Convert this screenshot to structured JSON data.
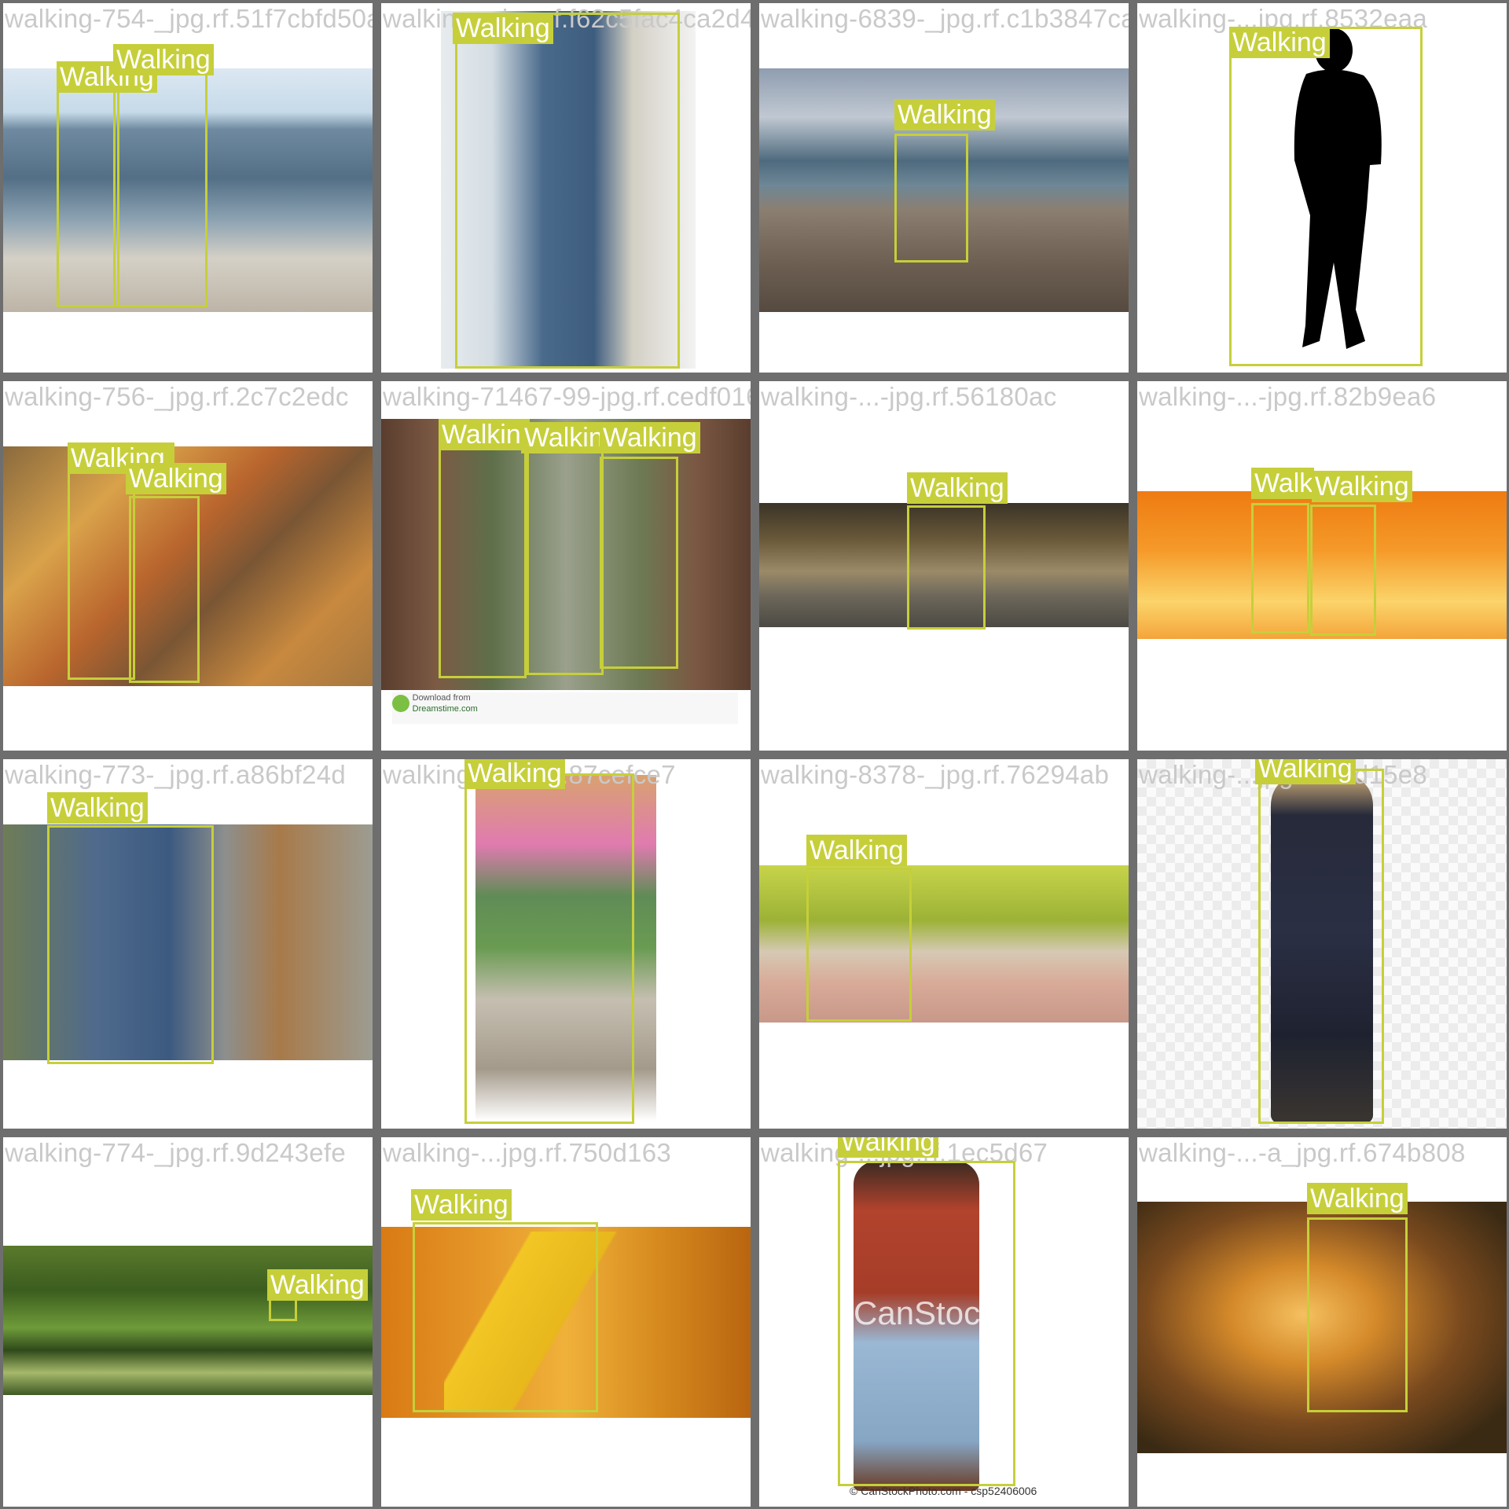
{
  "label_color": "#c6cf3a",
  "frame_color": "#6e6e6e",
  "tiles": [
    {
      "filename": "walking-754-_jpg.rf.51f7cbfd50aIk",
      "scene": "couple on beach",
      "labels": [
        "Walking",
        "Walking"
      ]
    },
    {
      "filename": "walking-...jpg.rf.f62c5fac4ca2d4",
      "scene": "nurse helping elderly man",
      "labels": [
        "Walking"
      ]
    },
    {
      "filename": "walking-6839-_jpg.rf.c1b3847ca5b5857e3f0",
      "scene": "man walking on beach",
      "labels": [
        "Walking"
      ]
    },
    {
      "filename": "walking-...jpg.rf.8532eaa",
      "scene": "black silhouette",
      "labels": [
        "Walking"
      ]
    },
    {
      "filename": "walking-756-_jpg.rf.2c7c2edc",
      "scene": "elderly couple autumn",
      "labels": [
        "Walking",
        "Walking"
      ]
    },
    {
      "filename": "walking-71467-99-jpg.rf.cedf0162898e8577",
      "scene": "three women on bridge",
      "labels": [
        "Walking",
        "Walking",
        "Walking"
      ],
      "footer": {
        "line1": "Download from",
        "line2": "Dreamstime.com"
      }
    },
    {
      "filename": "walking-...-jpg.rf.56180ac",
      "scene": "man on night street",
      "labels": [
        "Walking"
      ]
    },
    {
      "filename": "walking-...-jpg.rf.82b9ea6",
      "scene": "two silhouettes sunset",
      "labels": [
        "Walking",
        "Walking"
      ]
    },
    {
      "filename": "walking-773-_jpg.rf.a86bf24d",
      "scene": "man walking dog",
      "labels": [
        "Walking"
      ]
    },
    {
      "filename": "walking-...jpg.rf.87cefce7",
      "scene": "father carrying children",
      "labels": [
        "Walking"
      ]
    },
    {
      "filename": "walking-8378-_jpg.rf.76294ab",
      "scene": "feet on path",
      "labels": [
        "Walking"
      ]
    },
    {
      "filename": "walking-...jpg.rf.30d15e8",
      "scene": "young man in t-shirt",
      "labels": [
        "Walking"
      ]
    },
    {
      "filename": "walking-774-_jpg.rf.9d243efe",
      "scene": "park with river",
      "labels": [
        "Walking"
      ]
    },
    {
      "filename": "walking-...jpg.rf.750d163",
      "scene": "yellow pants by orange car",
      "labels": [
        "Walking"
      ]
    },
    {
      "filename": "walking-...jpg.rf.1ec5d67",
      "scene": "man in red sweater",
      "labels": [
        "Walking"
      ],
      "footer": {
        "line1": "© CanStockPhoto.com - csp52406006",
        "wm": "CanStock"
      }
    },
    {
      "filename": "walking-...-a_jpg.rf.674b808",
      "scene": "father and child at sunset",
      "labels": [
        "Walking"
      ]
    }
  ]
}
